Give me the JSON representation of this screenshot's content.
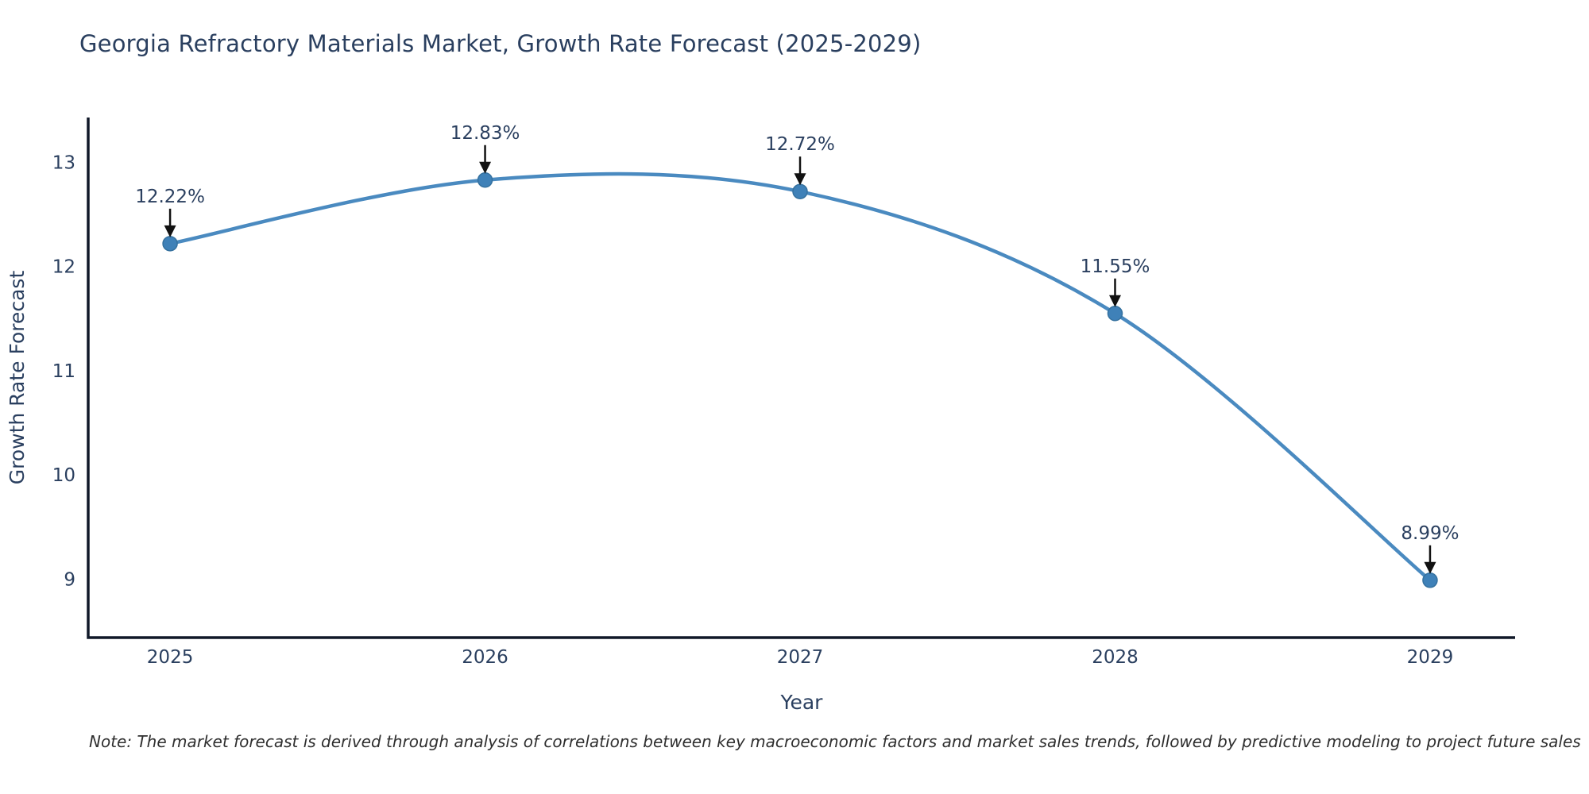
{
  "header": {
    "title": "Georgia Refractory Materials Market, Growth Rate Forecast (2025-2029)"
  },
  "chart_data": {
    "type": "line",
    "line_shape": "spline",
    "title": "Georgia Refractory Materials Market, Growth Rate Forecast (2025-2029)",
    "xlabel": "Year",
    "ylabel": "Growth Rate Forecast",
    "x": [
      2025,
      2026,
      2027,
      2028,
      2029
    ],
    "values": [
      12.22,
      12.83,
      12.72,
      11.55,
      8.99
    ],
    "point_labels": [
      "12.22%",
      "12.83%",
      "12.72%",
      "11.55%",
      "8.99%"
    ],
    "x_ticks": [
      2025,
      2026,
      2027,
      2028,
      2029
    ],
    "x_tick_labels": [
      "2025",
      "2026",
      "2027",
      "2028",
      "2029"
    ],
    "y_ticks": [
      9,
      10,
      11,
      12,
      13
    ],
    "y_tick_labels": [
      "9",
      "10",
      "11",
      "12",
      "13"
    ],
    "xlim": [
      2024.74,
      2029.27
    ],
    "ylim": [
      8.44,
      13.43
    ],
    "grid": false,
    "legend": false,
    "colors": {
      "line": "#4a8ac0",
      "marker": "#3f81b8",
      "marker_edge": "#35719f",
      "arrow": "#111111",
      "text": "#2a3f5f",
      "axis": "#101828"
    }
  },
  "footnote": {
    "text": "Note: The market forecast is derived through analysis of correlations between key macroeconomic factors and market sales trends, followed by predictive modeling to project future sales"
  }
}
